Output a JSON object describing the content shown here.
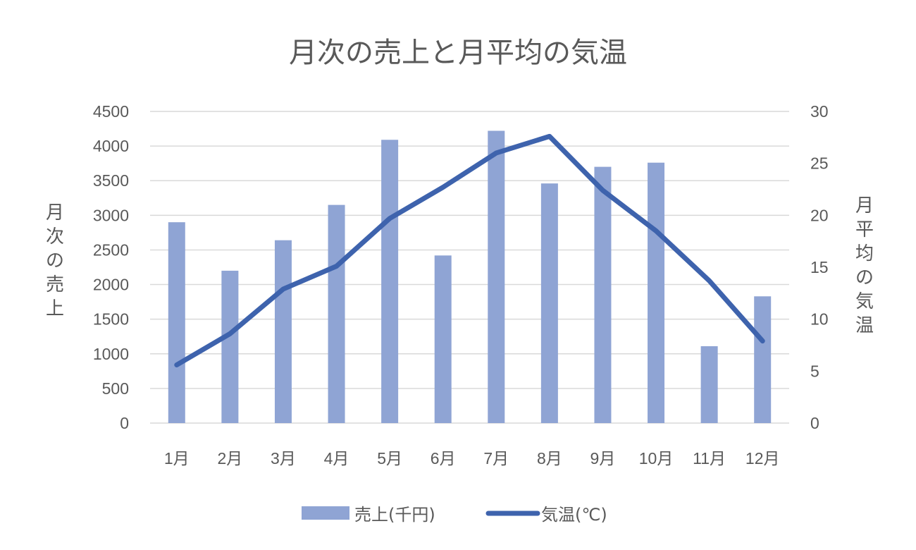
{
  "chart_data": {
    "type": "bar+line",
    "title": "月次の売上と月平均の気温",
    "categories": [
      "1月",
      "2月",
      "3月",
      "4月",
      "5月",
      "6月",
      "7月",
      "8月",
      "9月",
      "10月",
      "11月",
      "12月"
    ],
    "series": [
      {
        "name": "売上(千円)",
        "type": "bar",
        "axis": "left",
        "color": "#8FA4D4",
        "values": [
          2900,
          2200,
          2640,
          3150,
          4090,
          2420,
          4220,
          3460,
          3700,
          3760,
          1110,
          1830
        ]
      },
      {
        "name": "気温(℃)",
        "type": "line",
        "axis": "right",
        "color": "#3E63AD",
        "values": [
          5.6,
          8.6,
          12.9,
          15.1,
          19.7,
          22.7,
          26.0,
          27.6,
          22.4,
          18.5,
          13.7,
          7.9
        ]
      }
    ],
    "ylabel": "月次の売上",
    "y2label": "月平均の気温",
    "xlabel": "",
    "ylim": [
      0,
      4500
    ],
    "y2lim": [
      0,
      30
    ],
    "yticks": [
      0,
      500,
      1000,
      1500,
      2000,
      2500,
      3000,
      3500,
      4000,
      4500
    ],
    "y2ticks": [
      0,
      5,
      10,
      15,
      20,
      25,
      30
    ],
    "grid": true,
    "legend_position": "bottom"
  }
}
